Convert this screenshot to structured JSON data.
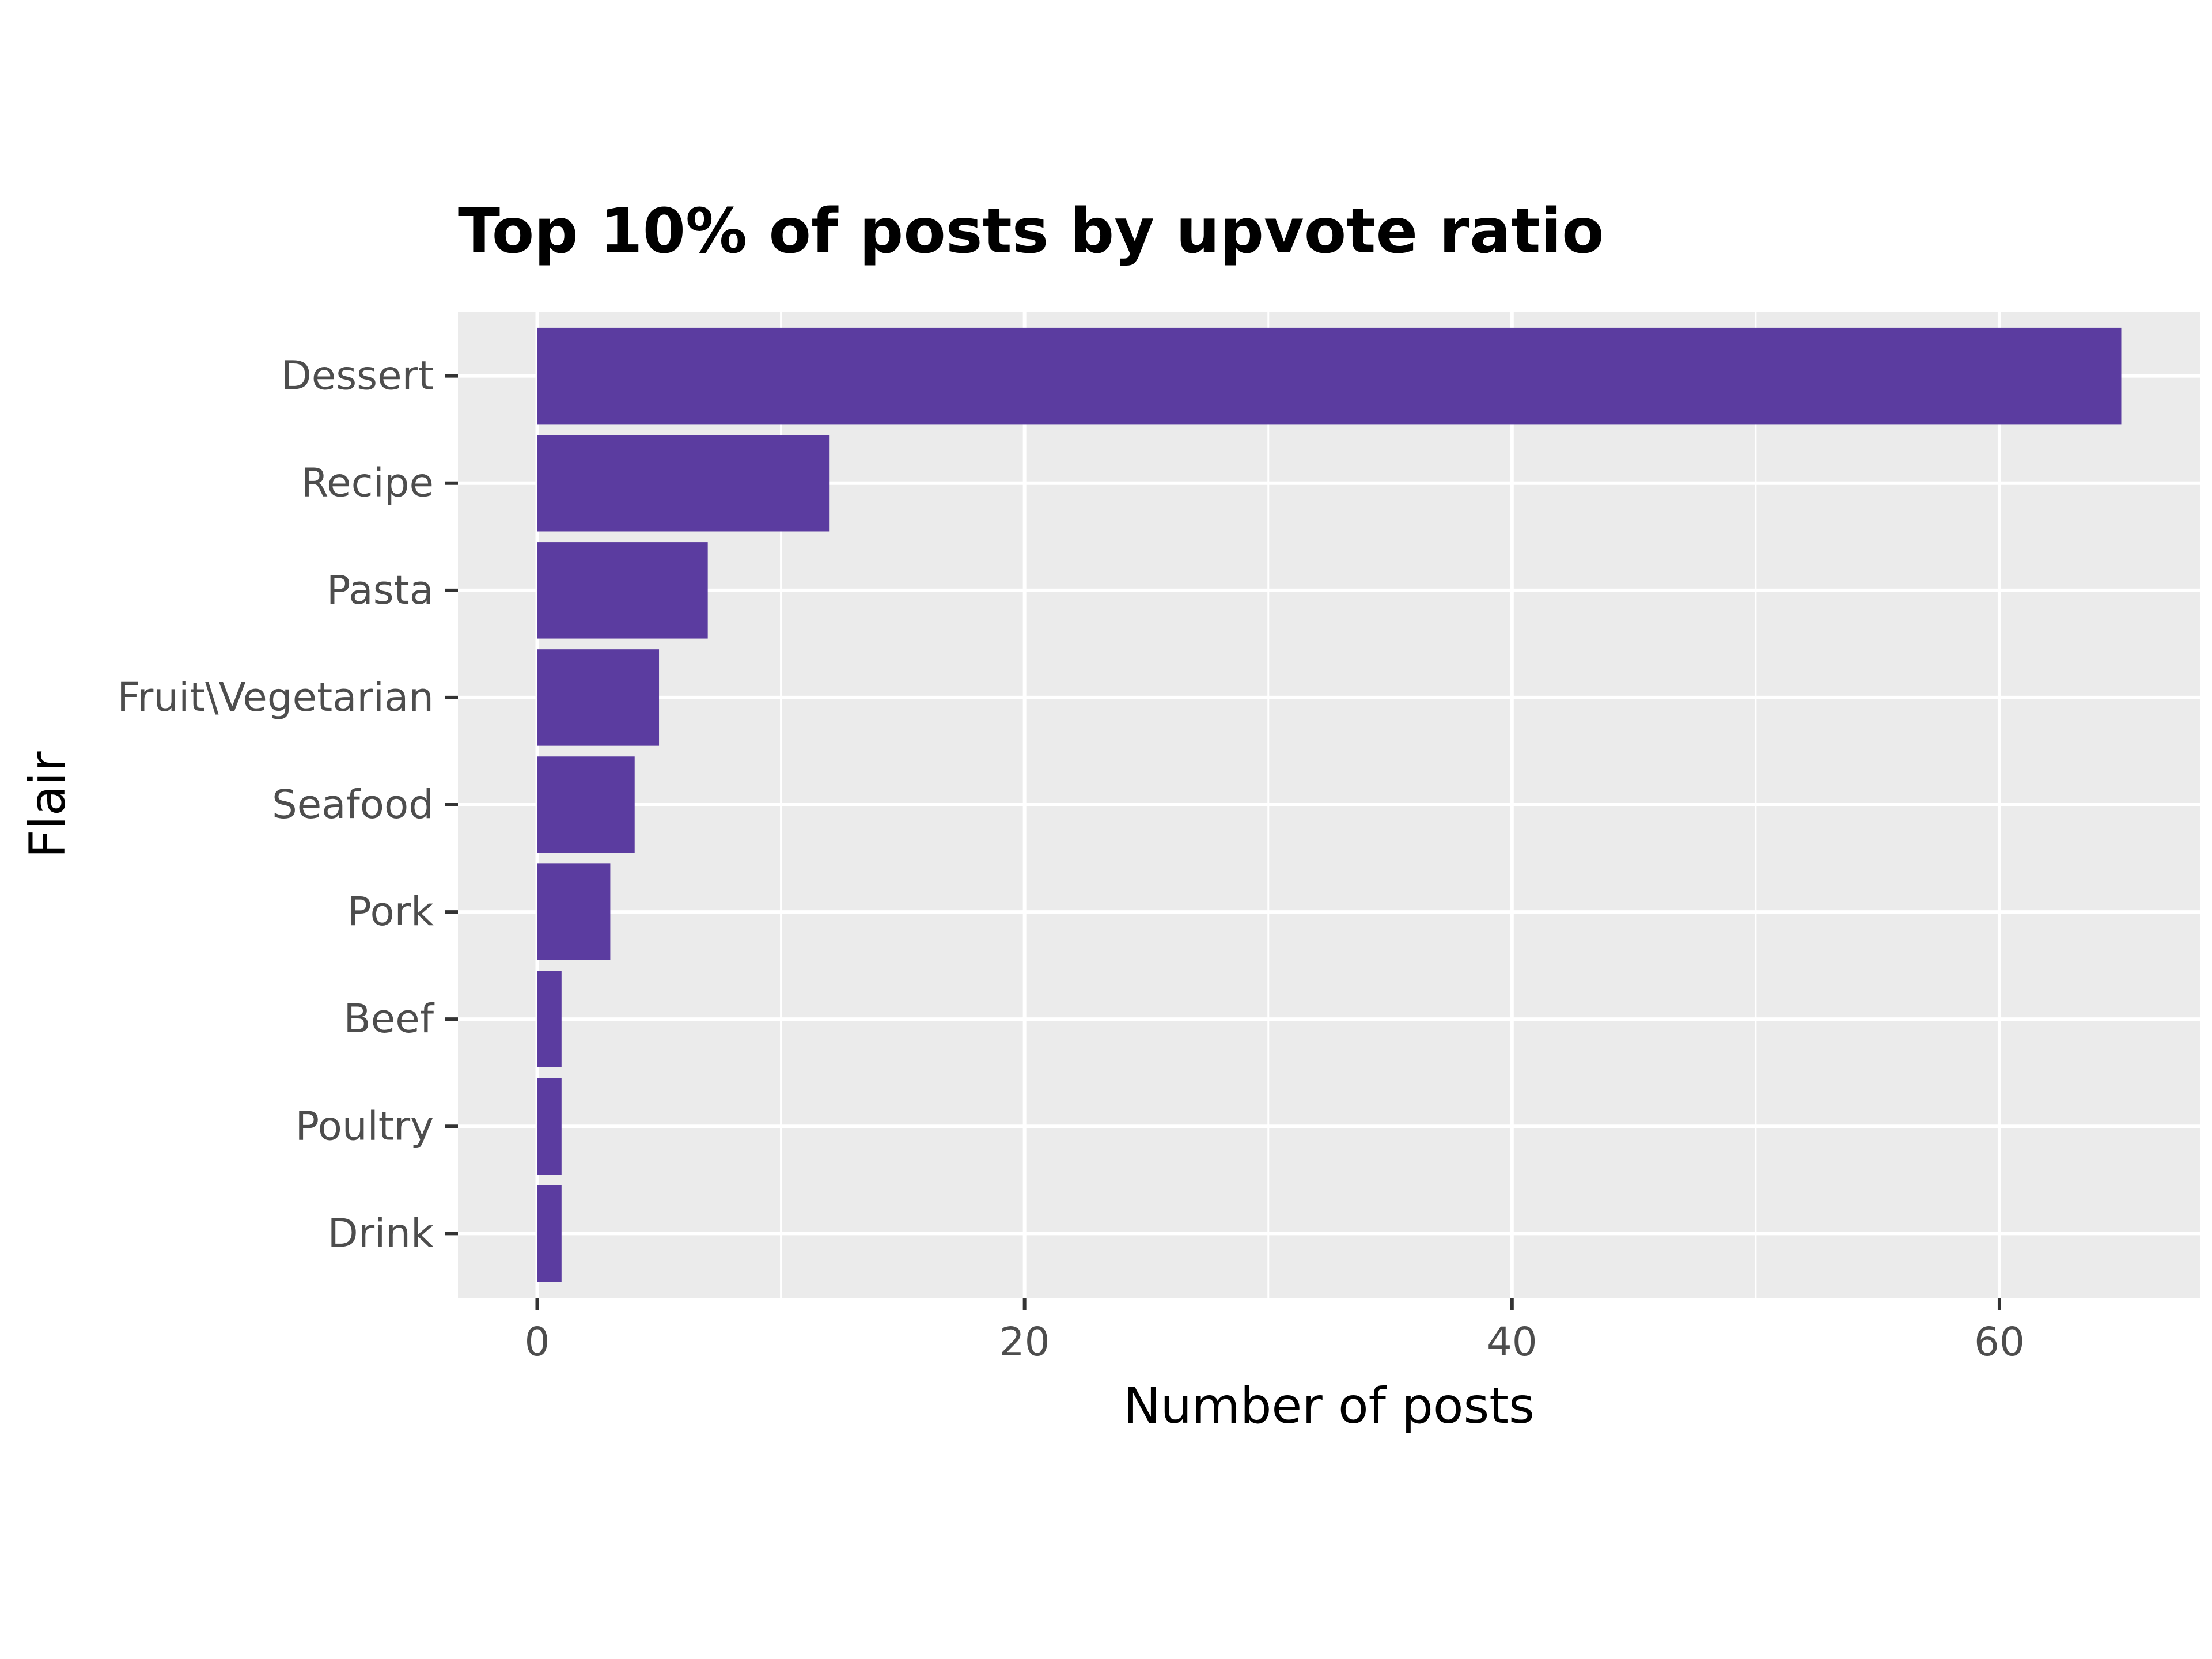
{
  "chart_data": {
    "type": "bar",
    "orientation": "horizontal",
    "title": "Top 10% of posts by upvote ratio",
    "xlabel": "Number of posts",
    "ylabel": "Flair",
    "categories": [
      "Dessert",
      "Recipe",
      "Pasta",
      "Fruit\\Vegetarian",
      "Seafood",
      "Pork",
      "Beef",
      "Poultry",
      "Drink"
    ],
    "values": [
      65,
      12,
      7,
      5,
      4,
      3,
      1,
      1,
      1
    ],
    "xlim": [
      -3.25,
      68.25
    ],
    "x_ticks": [
      0,
      20,
      40,
      60
    ],
    "x_tick_labels": [
      "0",
      "20",
      "40",
      "60"
    ],
    "grid": true,
    "legend": "none",
    "colors": {
      "bar": "#5b3ca0",
      "panel": "#ebebeb",
      "grid": "#ffffff",
      "text": "#000000",
      "tick_text": "#4d4d4d",
      "tick_mark": "#333333"
    }
  }
}
